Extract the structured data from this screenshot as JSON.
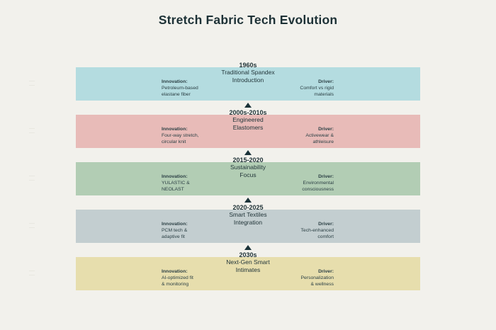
{
  "page": {
    "title": "Stretch Fabric Tech Evolution",
    "background_color": "#f2f1ec",
    "title_color": "#1d3136",
    "arrow_color": "#1a3238"
  },
  "timeline": {
    "eras": [
      {
        "year": "1960s",
        "name": "Traditional Spandex\nIntroduction",
        "color": "#b4dce0",
        "show_arrow": false,
        "innovation_label": "Innovation:",
        "innovation": "Petroleum-based\nelastane fiber",
        "driver_label": "Driver:",
        "driver": "Comfort vs rigid\nmaterials"
      },
      {
        "year": "2000s-2010s",
        "name": "Engineered\nElastomers",
        "color": "#e8bbb8",
        "show_arrow": true,
        "innovation_label": "Innovation:",
        "innovation": "Four-way stretch,\ncircular knit",
        "driver_label": "Driver:",
        "driver": "Activewear &\nathleisure"
      },
      {
        "year": "2015-2020",
        "name": "Sustainability\nFocus",
        "color": "#b2cdb4",
        "show_arrow": true,
        "innovation_label": "Innovation:",
        "innovation": "YULASTIC &\nNEOLAST",
        "driver_label": "Driver:",
        "driver": "Environmental\nconsciousness"
      },
      {
        "year": "2020-2025",
        "name": "Smart Textiles\nIntegration",
        "color": "#c3ced0",
        "show_arrow": true,
        "innovation_label": "Innovation:",
        "innovation": "PCM tech &\nadaptive fit",
        "driver_label": "Driver:",
        "driver": "Tech-enhanced\ncomfort"
      },
      {
        "year": "2030s",
        "name": "Next-Gen Smart\nIntimates",
        "color": "#e7dead",
        "show_arrow": true,
        "innovation_label": "Innovation:",
        "innovation": "AI-optimized fit\n& monitoring",
        "driver_label": "Driver:",
        "driver": "Personalization\n& wellness"
      }
    ]
  }
}
